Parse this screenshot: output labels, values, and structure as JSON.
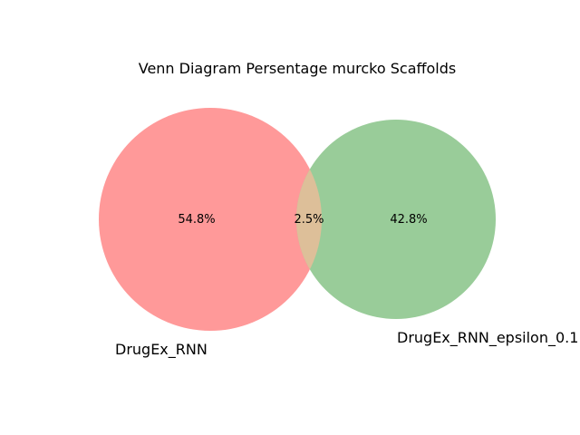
{
  "title": "Venn Diagram Persentage murcko Scaffolds",
  "sets": [
    {
      "name": "DrugEx_RNN",
      "color": "#ff9999"
    },
    {
      "name": "DrugEx_RNN_epsilon_0.1",
      "color": "#99cc99"
    }
  ],
  "regions": {
    "only_a": "54.8%",
    "intersection": "2.5%",
    "only_b": "42.8%"
  },
  "intersection_color": "#ddbf99"
}
